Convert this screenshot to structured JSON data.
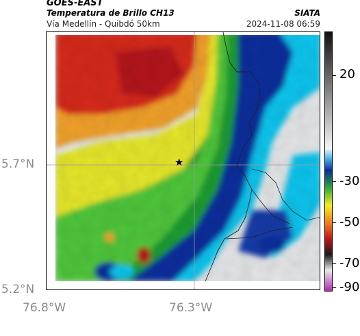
{
  "header": {
    "satellite": "GOES-EAST",
    "product": "Temperatura de Brillo CH13",
    "region": "Vía Medellín - Quibdó 50km",
    "org": "SIATA",
    "datetime": "2024-11-08 06:59"
  },
  "axes": {
    "lat_labels": [
      "5.7°N",
      "5.2°N"
    ],
    "lon_labels": [
      "76.8°W",
      "76.3°W"
    ]
  },
  "colorbar": {
    "ticks": [
      "20",
      "-30",
      "-50",
      "-70",
      "-90"
    ]
  },
  "colors": {
    "warm": "#d9e1e8",
    "cold_red": "#d81d1d",
    "blue": "#0a37a7",
    "cyan": "#06c8f0"
  },
  "marker": {
    "symbol": "★"
  }
}
